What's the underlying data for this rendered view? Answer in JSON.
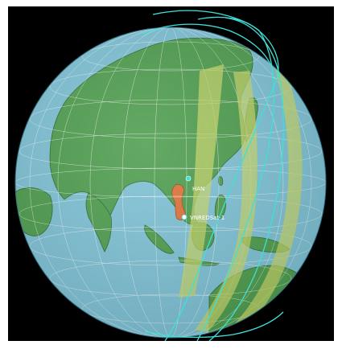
{
  "map": {
    "labels": {
      "ground_station": "HAN",
      "satellite": "VNREDSat-1"
    },
    "colors": {
      "background": "#000000",
      "ocean": "#7fc3d6",
      "land": "#4f9e4f",
      "swath": "#c9d86a",
      "orbit": "#3fe0d8",
      "graticule": "#ffffff",
      "country_highlight": "#e0733a"
    },
    "swath_count": 3,
    "orbit_count": 3
  }
}
